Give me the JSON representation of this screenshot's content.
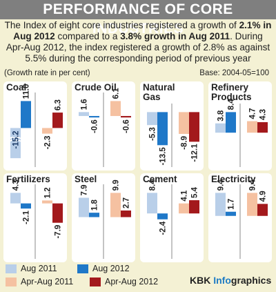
{
  "header": {
    "title": "PERFORMANCE OF CORE INDUSTRIES",
    "intro_part1": "The Index of eight core industries registered a growth of ",
    "intro_bold1": "2.1% in Aug 2012",
    "intro_part2": " compared to a ",
    "intro_bold2": "3.8% growth in Aug 2011",
    "intro_part3": ". During Apr-Aug 2012, the index registered a growth of 2.8% as against 5.5% during the corresponding period of previous year",
    "unit_note": "(Growth rate in per cent)",
    "base_note": "Base: 2004-05=100"
  },
  "colors": {
    "aug_2011": "#b9cfe9",
    "aug_2012": "#1f78c8",
    "apr_aug_2011": "#f5c1a1",
    "apr_aug_2012": "#a3191c",
    "panel_bg": "#ffffff",
    "page_bg": "#f4f1d4",
    "title_bar": "#7f7f7f"
  },
  "chart_data": {
    "type": "bar",
    "series_names": [
      "Aug 2011",
      "Aug 2012",
      "Apr-Aug 2011",
      "Apr-Aug 2012"
    ],
    "panels": [
      {
        "name": "Coal",
        "values": [
          -15.2,
          11.0,
          -2.3,
          6.3
        ],
        "labels": [
          "-15.2",
          "11.0",
          "-2.3",
          "6.3"
        ]
      },
      {
        "name": "Crude Oil",
        "values": [
          1.6,
          -0.6,
          6.1,
          -0.6
        ],
        "labels": [
          "1.6",
          "-0.6",
          "6.1",
          "-0.6"
        ]
      },
      {
        "name": "Natural Gas",
        "values": [
          -5.3,
          -13.5,
          -8.9,
          -12.1
        ],
        "labels": [
          "-5.3",
          "-13.5",
          "-8.9",
          "-12.1"
        ]
      },
      {
        "name": "Refinery Products",
        "values": [
          3.8,
          8.4,
          4.7,
          4.3
        ],
        "labels": [
          "3.8",
          "8.4",
          "4.7",
          "4.3"
        ]
      },
      {
        "name": "Fertilizers",
        "values": [
          4.3,
          -2.1,
          1.2,
          -7.9
        ],
        "labels": [
          "4.3",
          "-2.1",
          "1.2",
          "-7.9"
        ]
      },
      {
        "name": "Steel",
        "values": [
          7.9,
          1.8,
          9.9,
          2.7
        ],
        "labels": [
          "7.9",
          "1.8",
          "9.9",
          "2.7"
        ]
      },
      {
        "name": "Cement",
        "values": [
          8.4,
          -2.4,
          4.1,
          5.4
        ],
        "labels": [
          "8.4",
          "-2.4",
          "4.1",
          "5.4"
        ]
      },
      {
        "name": "Electricity",
        "values": [
          9.4,
          1.7,
          9.4,
          4.9
        ],
        "labels": [
          "9.4",
          "1.7",
          "9.4",
          "4.9"
        ]
      }
    ],
    "coal_aug_2011_bar_broken": true
  },
  "legend": {
    "items": [
      "Aug 2011",
      "Aug 2012",
      "Apr-Aug 2011",
      "Apr-Aug 2012"
    ]
  },
  "credit": {
    "brand": "KBK",
    "accent": "Info",
    "rest": "graphics"
  }
}
